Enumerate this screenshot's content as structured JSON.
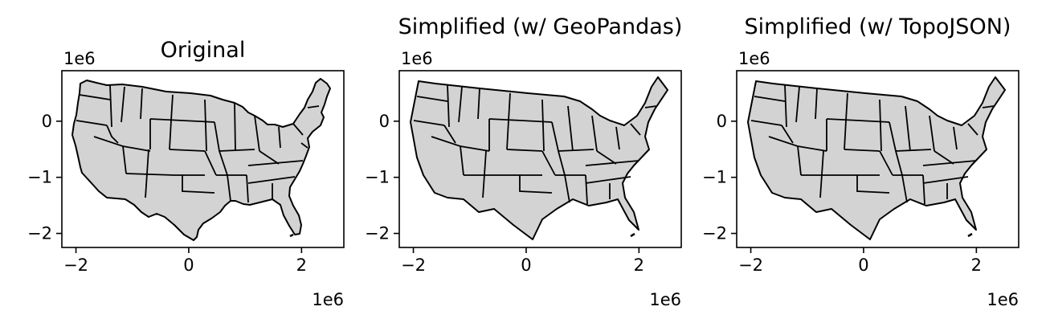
{
  "colors": {
    "fill": "#d3d3d3",
    "edge": "#000000"
  },
  "chart_data": [
    {
      "type": "map",
      "title": "Original",
      "xlim": [
        -2.25,
        2.75
      ],
      "ylim": [
        -2.25,
        0.9
      ],
      "xticks": [
        {
          "value": -2,
          "label": "−2"
        },
        {
          "value": 0,
          "label": "0"
        },
        {
          "value": 2,
          "label": "2"
        }
      ],
      "yticks": [
        {
          "value": 0,
          "label": "0"
        },
        {
          "value": -1,
          "label": "−1"
        },
        {
          "value": -2,
          "label": "−2"
        }
      ],
      "x_offset": "1e6",
      "y_offset": "1e6",
      "geometry": "original"
    },
    {
      "type": "map",
      "title": "Simplified (w/ GeoPandas)",
      "xlim": [
        -2.25,
        2.75
      ],
      "ylim": [
        -2.25,
        0.9
      ],
      "xticks": [
        {
          "value": -2,
          "label": "−2"
        },
        {
          "value": 0,
          "label": "0"
        },
        {
          "value": 2,
          "label": "2"
        }
      ],
      "yticks": [
        {
          "value": 0,
          "label": "0"
        },
        {
          "value": -1,
          "label": "−1"
        },
        {
          "value": -2,
          "label": "−2"
        }
      ],
      "x_offset": "1e6",
      "y_offset": "1e6",
      "geometry": "simplified"
    },
    {
      "type": "map",
      "title": "Simplified (w/ TopoJSON)",
      "xlim": [
        -2.25,
        2.75
      ],
      "ylim": [
        -2.25,
        0.9
      ],
      "xticks": [
        {
          "value": -2,
          "label": "−2"
        },
        {
          "value": 0,
          "label": "0"
        },
        {
          "value": 2,
          "label": "2"
        }
      ],
      "yticks": [
        {
          "value": 0,
          "label": "0"
        },
        {
          "value": -1,
          "label": "−1"
        },
        {
          "value": -2,
          "label": "−2"
        }
      ],
      "x_offset": "1e6",
      "y_offset": "1e6",
      "geometry": "simplified"
    }
  ]
}
